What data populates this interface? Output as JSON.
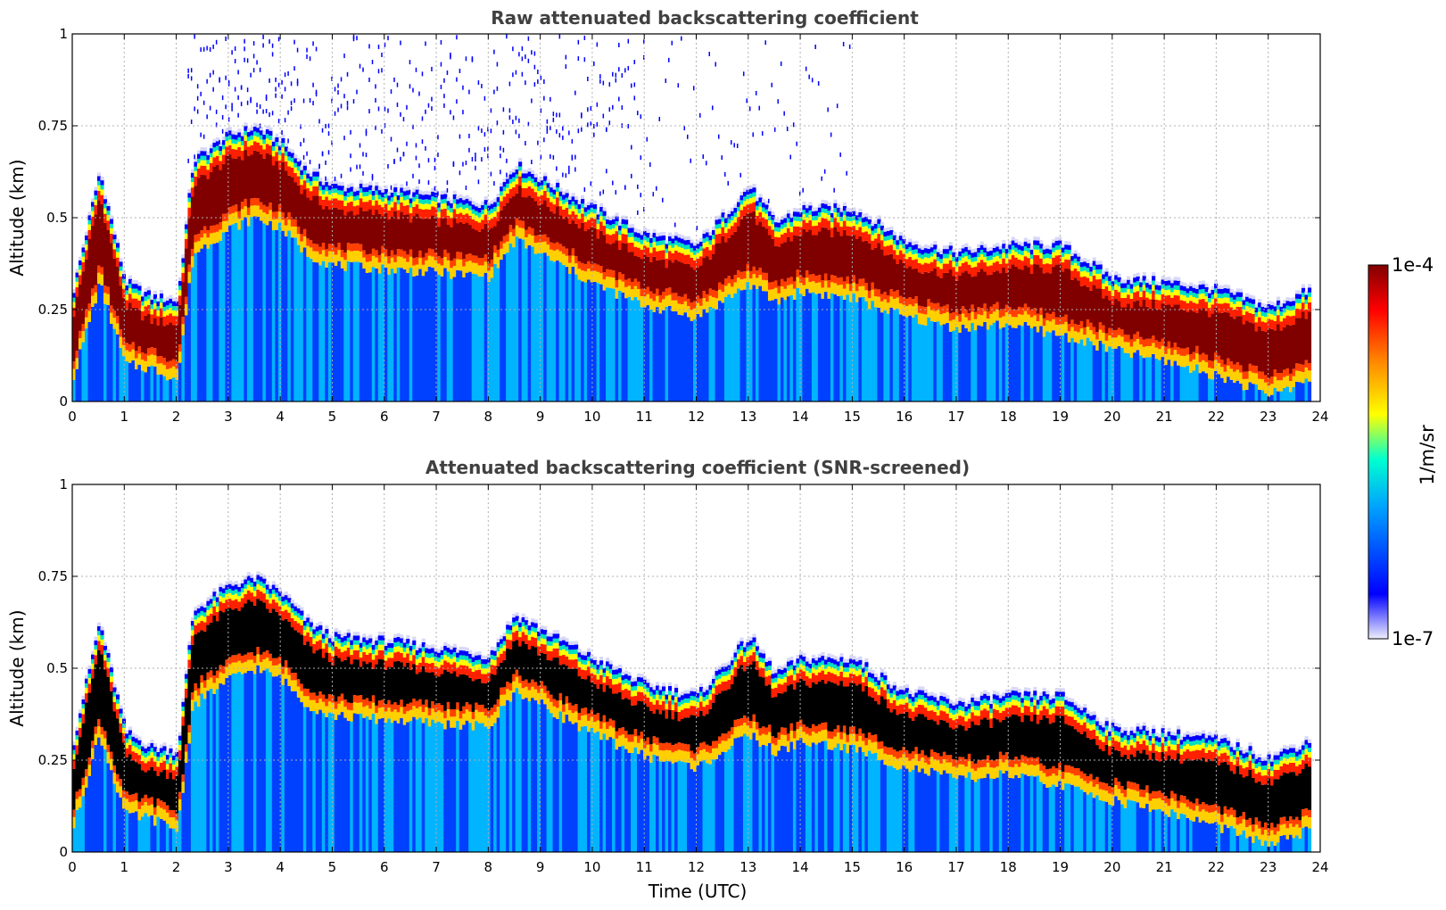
{
  "chart_data": [
    {
      "type": "heatmap",
      "title": "Raw attenuated backscattering coefficient",
      "xlabel": "",
      "ylabel": "Altitude (km)",
      "xlim": [
        0,
        24
      ],
      "ylim": [
        0,
        1
      ],
      "x_ticks": [
        "0",
        "1",
        "2",
        "3",
        "4",
        "5",
        "6",
        "7",
        "8",
        "9",
        "10",
        "11",
        "12",
        "13",
        "14",
        "15",
        "16",
        "17",
        "18",
        "19",
        "20",
        "21",
        "22",
        "23",
        "24"
      ],
      "y_ticks": [
        "0",
        "0.25",
        "0.5",
        "0.75",
        "1"
      ],
      "grid": true,
      "screened": false,
      "layer_top_km": [
        [
          0,
          0.3
        ],
        [
          0.5,
          0.62
        ],
        [
          1,
          0.32
        ],
        [
          1.5,
          0.28
        ],
        [
          2,
          0.27
        ],
        [
          2.3,
          0.65
        ],
        [
          3,
          0.72
        ],
        [
          3.5,
          0.74
        ],
        [
          4,
          0.7
        ],
        [
          4.5,
          0.62
        ],
        [
          5,
          0.58
        ],
        [
          6,
          0.57
        ],
        [
          7,
          0.55
        ],
        [
          8,
          0.53
        ],
        [
          8.5,
          0.64
        ],
        [
          9,
          0.6
        ],
        [
          10,
          0.52
        ],
        [
          11,
          0.45
        ],
        [
          12,
          0.42
        ],
        [
          13,
          0.58
        ],
        [
          13.5,
          0.48
        ],
        [
          14,
          0.52
        ],
        [
          15,
          0.52
        ],
        [
          16,
          0.43
        ],
        [
          17,
          0.4
        ],
        [
          18,
          0.42
        ],
        [
          19,
          0.42
        ],
        [
          20,
          0.33
        ],
        [
          21,
          0.32
        ],
        [
          22,
          0.3
        ],
        [
          23,
          0.25
        ],
        [
          23.8,
          0.3
        ]
      ],
      "layer_core_km": [
        [
          0,
          0.15
        ],
        [
          0.5,
          0.4
        ],
        [
          1,
          0.18
        ],
        [
          1.5,
          0.17
        ],
        [
          2,
          0.14
        ],
        [
          2.3,
          0.48
        ],
        [
          3,
          0.55
        ],
        [
          3.5,
          0.58
        ],
        [
          4,
          0.55
        ],
        [
          4.5,
          0.48
        ],
        [
          5,
          0.45
        ],
        [
          6,
          0.44
        ],
        [
          7,
          0.43
        ],
        [
          8,
          0.42
        ],
        [
          8.5,
          0.52
        ],
        [
          9,
          0.48
        ],
        [
          10,
          0.4
        ],
        [
          11,
          0.34
        ],
        [
          12,
          0.31
        ],
        [
          13,
          0.4
        ],
        [
          13.5,
          0.35
        ],
        [
          14,
          0.38
        ],
        [
          15,
          0.36
        ],
        [
          16,
          0.31
        ],
        [
          17,
          0.28
        ],
        [
          18,
          0.29
        ],
        [
          19,
          0.26
        ],
        [
          20,
          0.22
        ],
        [
          21,
          0.19
        ],
        [
          22,
          0.15
        ],
        [
          23,
          0.1
        ],
        [
          23.8,
          0.14
        ]
      ]
    },
    {
      "type": "heatmap",
      "title": "Attenuated backscattering coefficient (SNR-screened)",
      "xlabel": "Time (UTC)",
      "ylabel": "Altitude (km)",
      "xlim": [
        0,
        24
      ],
      "ylim": [
        0,
        1
      ],
      "x_ticks": [
        "0",
        "1",
        "2",
        "3",
        "4",
        "5",
        "6",
        "7",
        "8",
        "9",
        "10",
        "11",
        "12",
        "13",
        "14",
        "15",
        "16",
        "17",
        "18",
        "19",
        "20",
        "21",
        "22",
        "23",
        "24"
      ],
      "y_ticks": [
        "0",
        "0.25",
        "0.5",
        "0.75",
        "1"
      ],
      "grid": true,
      "screened": true
    }
  ],
  "colorbar": {
    "max_label": "1e-4",
    "min_label": "1e-7",
    "units": "1/m/sr",
    "scale": "log",
    "colors": [
      "#e6e6fa",
      "#0000ff",
      "#00c8ff",
      "#00ffc0",
      "#ffff00",
      "#ff8000",
      "#ff0000",
      "#800000"
    ]
  },
  "colors": {
    "saturated_screened": "#000000",
    "title_text": "#404040",
    "grid": "#b0b0b0"
  }
}
